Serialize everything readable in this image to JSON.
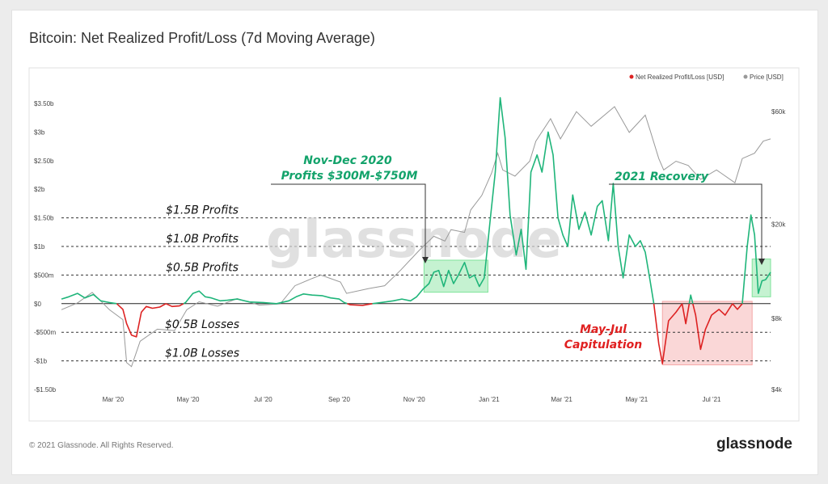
{
  "title": "Bitcoin: Net Realized Profit/Loss (7d Moving Average)",
  "footer": {
    "copyright": "© 2021 Glassnode. All Rights Reserved.",
    "brand": "glassnode"
  },
  "watermark": "glassnode",
  "colors": {
    "profit": "#1fb57a",
    "loss": "#dd2222",
    "price": "#999999",
    "profit_box": "#7fe39a",
    "loss_box": "#f5a7a7",
    "profit_text": "#13a36b",
    "loss_text": "#e02020"
  },
  "chart_data": {
    "type": "line",
    "title": "Bitcoin: Net Realized Profit/Loss (7d Moving Average)",
    "legend": [
      {
        "label": "Net Realized Profit/Loss [USD]",
        "color": "#dd2222"
      },
      {
        "label": "Price [USD]",
        "color": "#999999"
      }
    ],
    "legend_position": "top-right",
    "x_ticks": [
      {
        "label": "Mar '20",
        "date": "2020-03-01"
      },
      {
        "label": "May '20",
        "date": "2020-05-01"
      },
      {
        "label": "Jul '20",
        "date": "2020-07-01"
      },
      {
        "label": "Sep '20",
        "date": "2020-09-01"
      },
      {
        "label": "Nov '20",
        "date": "2020-11-01"
      },
      {
        "label": "Jan '21",
        "date": "2021-01-01"
      },
      {
        "label": "Mar '21",
        "date": "2021-03-01"
      },
      {
        "label": "May '21",
        "date": "2021-05-01"
      },
      {
        "label": "Jul '21",
        "date": "2021-07-01"
      }
    ],
    "x_range": [
      "2020-01-19",
      "2021-08-18"
    ],
    "y_left": {
      "label": "Net Realized Profit/Loss [USD]",
      "range": [
        -1.5,
        3.5
      ],
      "unit": "billions USD",
      "ticks": [
        {
          "v": 3.5,
          "label": "$3.50b"
        },
        {
          "v": 3,
          "label": "$3b"
        },
        {
          "v": 2.5,
          "label": "$2.50b"
        },
        {
          "v": 2,
          "label": "$2b"
        },
        {
          "v": 1.5,
          "label": "$1.50b"
        },
        {
          "v": 1,
          "label": "$1b"
        },
        {
          "v": 0.5,
          "label": "$500m"
        },
        {
          "v": 0,
          "label": "$0"
        },
        {
          "v": -0.5,
          "label": "-$500m"
        },
        {
          "v": -1,
          "label": "-$1b"
        },
        {
          "v": -1.5,
          "label": "-$1.50b"
        }
      ]
    },
    "y_right": {
      "label": "Price [USD]",
      "scale": "log",
      "range": [
        4000,
        65000
      ],
      "ticks": [
        {
          "v": 60000,
          "label": "$60k"
        },
        {
          "v": 20000,
          "label": "$20k"
        },
        {
          "v": 8000,
          "label": "$8k"
        },
        {
          "v": 4000,
          "label": "$4k"
        }
      ]
    },
    "reference_lines": [
      {
        "v": 1.5,
        "label": "$1.5B Profits"
      },
      {
        "v": 1.0,
        "label": "$1.0B Profits"
      },
      {
        "v": 0.5,
        "label": "$0.5B Profits"
      },
      {
        "v": -0.5,
        "label": "$0.5B Losses"
      },
      {
        "v": -1.0,
        "label": "$1.0B Losses"
      }
    ],
    "highlight_regions": [
      {
        "id": "nov-dec-2020",
        "x0": "2020-11-09",
        "x1": "2020-12-31",
        "y0": 0.2,
        "y1": 0.76,
        "kind": "profit"
      },
      {
        "id": "may-jul-2021",
        "x0": "2021-05-22",
        "x1": "2021-08-03",
        "y0": -1.07,
        "y1": 0.04,
        "kind": "loss"
      },
      {
        "id": "recovery-2021",
        "x0": "2021-08-03",
        "x1": "2021-08-18",
        "y0": 0.12,
        "y1": 0.78,
        "kind": "profit"
      }
    ],
    "annotations": [
      {
        "id": "nov-dec",
        "lines": [
          "Nov-Dec 2020",
          "Profits $300M-$750M"
        ],
        "kind": "profit"
      },
      {
        "id": "recovery",
        "lines": [
          "2021  Recovery"
        ],
        "kind": "profit"
      },
      {
        "id": "capitulation",
        "lines": [
          "May-Jul",
          "Capitulation"
        ],
        "kind": "loss"
      }
    ],
    "series": [
      {
        "name": "Net Realized Profit/Loss [USD]",
        "unit": "billions USD",
        "points": [
          [
            "2020-01-19",
            0.08
          ],
          [
            "2020-01-25",
            0.12
          ],
          [
            "2020-02-01",
            0.18
          ],
          [
            "2020-02-07",
            0.1
          ],
          [
            "2020-02-14",
            0.16
          ],
          [
            "2020-02-20",
            0.05
          ],
          [
            "2020-02-27",
            0.02
          ],
          [
            "2020-03-04",
            0.0
          ],
          [
            "2020-03-09",
            -0.1
          ],
          [
            "2020-03-12",
            -0.35
          ],
          [
            "2020-03-16",
            -0.55
          ],
          [
            "2020-03-20",
            -0.58
          ],
          [
            "2020-03-24",
            -0.15
          ],
          [
            "2020-03-28",
            -0.05
          ],
          [
            "2020-04-02",
            -0.08
          ],
          [
            "2020-04-08",
            -0.06
          ],
          [
            "2020-04-13",
            0.0
          ],
          [
            "2020-04-18",
            -0.05
          ],
          [
            "2020-04-24",
            -0.04
          ],
          [
            "2020-04-29",
            0.02
          ],
          [
            "2020-05-05",
            0.18
          ],
          [
            "2020-05-10",
            0.22
          ],
          [
            "2020-05-15",
            0.12
          ],
          [
            "2020-05-20",
            0.1
          ],
          [
            "2020-05-27",
            0.05
          ],
          [
            "2020-06-02",
            0.06
          ],
          [
            "2020-06-10",
            0.08
          ],
          [
            "2020-06-20",
            0.03
          ],
          [
            "2020-07-01",
            0.02
          ],
          [
            "2020-07-12",
            0.0
          ],
          [
            "2020-07-22",
            0.05
          ],
          [
            "2020-07-28",
            0.12
          ],
          [
            "2020-08-03",
            0.17
          ],
          [
            "2020-08-10",
            0.15
          ],
          [
            "2020-08-18",
            0.14
          ],
          [
            "2020-08-25",
            0.1
          ],
          [
            "2020-09-01",
            0.08
          ],
          [
            "2020-09-05",
            0.02
          ],
          [
            "2020-09-10",
            -0.02
          ],
          [
            "2020-09-20",
            -0.03
          ],
          [
            "2020-09-28",
            0.0
          ],
          [
            "2020-10-05",
            0.02
          ],
          [
            "2020-10-15",
            0.05
          ],
          [
            "2020-10-22",
            0.08
          ],
          [
            "2020-10-29",
            0.05
          ],
          [
            "2020-11-03",
            0.12
          ],
          [
            "2020-11-08",
            0.25
          ],
          [
            "2020-11-13",
            0.35
          ],
          [
            "2020-11-17",
            0.55
          ],
          [
            "2020-11-21",
            0.58
          ],
          [
            "2020-11-25",
            0.3
          ],
          [
            "2020-11-29",
            0.58
          ],
          [
            "2020-12-03",
            0.35
          ],
          [
            "2020-12-07",
            0.5
          ],
          [
            "2020-12-12",
            0.72
          ],
          [
            "2020-12-16",
            0.45
          ],
          [
            "2020-12-20",
            0.5
          ],
          [
            "2020-12-24",
            0.3
          ],
          [
            "2020-12-28",
            0.45
          ],
          [
            "2021-01-02",
            1.5
          ],
          [
            "2021-01-06",
            2.3
          ],
          [
            "2021-01-10",
            3.6
          ],
          [
            "2021-01-14",
            2.9
          ],
          [
            "2021-01-18",
            1.55
          ],
          [
            "2021-01-23",
            0.85
          ],
          [
            "2021-01-27",
            1.3
          ],
          [
            "2021-01-31",
            0.6
          ],
          [
            "2021-02-04",
            2.3
          ],
          [
            "2021-02-09",
            2.6
          ],
          [
            "2021-02-13",
            2.3
          ],
          [
            "2021-02-18",
            3.0
          ],
          [
            "2021-02-22",
            2.6
          ],
          [
            "2021-02-26",
            1.5
          ],
          [
            "2021-03-02",
            1.2
          ],
          [
            "2021-03-06",
            1.0
          ],
          [
            "2021-03-10",
            1.9
          ],
          [
            "2021-03-15",
            1.3
          ],
          [
            "2021-03-20",
            1.6
          ],
          [
            "2021-03-25",
            1.2
          ],
          [
            "2021-03-30",
            1.7
          ],
          [
            "2021-04-03",
            1.8
          ],
          [
            "2021-04-08",
            1.1
          ],
          [
            "2021-04-12",
            2.1
          ],
          [
            "2021-04-16",
            1.0
          ],
          [
            "2021-04-20",
            0.45
          ],
          [
            "2021-04-25",
            1.2
          ],
          [
            "2021-04-30",
            1.0
          ],
          [
            "2021-05-04",
            1.1
          ],
          [
            "2021-05-08",
            0.9
          ],
          [
            "2021-05-12",
            0.4
          ],
          [
            "2021-05-15",
            0.0
          ],
          [
            "2021-05-19",
            -0.7
          ],
          [
            "2021-05-22",
            -1.05
          ],
          [
            "2021-05-27",
            -0.3
          ],
          [
            "2021-06-02",
            -0.15
          ],
          [
            "2021-06-07",
            0.0
          ],
          [
            "2021-06-10",
            -0.35
          ],
          [
            "2021-06-14",
            0.15
          ],
          [
            "2021-06-18",
            -0.2
          ],
          [
            "2021-06-22",
            -0.8
          ],
          [
            "2021-06-26",
            -0.45
          ],
          [
            "2021-07-01",
            -0.2
          ],
          [
            "2021-07-07",
            -0.1
          ],
          [
            "2021-07-12",
            -0.2
          ],
          [
            "2021-07-18",
            0.0
          ],
          [
            "2021-07-22",
            -0.1
          ],
          [
            "2021-07-26",
            0.0
          ],
          [
            "2021-07-30",
            1.0
          ],
          [
            "2021-08-02",
            1.55
          ],
          [
            "2021-08-05",
            1.2
          ],
          [
            "2021-08-08",
            0.18
          ],
          [
            "2021-08-11",
            0.4
          ],
          [
            "2021-08-14",
            0.42
          ],
          [
            "2021-08-18",
            0.55
          ]
        ]
      },
      {
        "name": "Price [USD]",
        "unit": "USD",
        "points": [
          [
            "2020-01-19",
            8700
          ],
          [
            "2020-02-01",
            9300
          ],
          [
            "2020-02-13",
            10300
          ],
          [
            "2020-02-27",
            8700
          ],
          [
            "2020-03-09",
            7900
          ],
          [
            "2020-03-12",
            5200
          ],
          [
            "2020-03-16",
            5000
          ],
          [
            "2020-03-23",
            6400
          ],
          [
            "2020-04-06",
            7200
          ],
          [
            "2020-04-20",
            7100
          ],
          [
            "2020-04-30",
            8700
          ],
          [
            "2020-05-10",
            9400
          ],
          [
            "2020-05-25",
            9000
          ],
          [
            "2020-06-10",
            9700
          ],
          [
            "2020-06-28",
            9100
          ],
          [
            "2020-07-15",
            9200
          ],
          [
            "2020-07-27",
            11000
          ],
          [
            "2020-08-10",
            11800
          ],
          [
            "2020-08-17",
            12200
          ],
          [
            "2020-09-02",
            11400
          ],
          [
            "2020-09-07",
            10200
          ],
          [
            "2020-09-25",
            10700
          ],
          [
            "2020-10-08",
            11000
          ],
          [
            "2020-10-21",
            12800
          ],
          [
            "2020-11-05",
            15500
          ],
          [
            "2020-11-17",
            17800
          ],
          [
            "2020-11-26",
            17000
          ],
          [
            "2020-12-01",
            19000
          ],
          [
            "2020-12-12",
            18500
          ],
          [
            "2020-12-17",
            23000
          ],
          [
            "2020-12-26",
            26500
          ],
          [
            "2021-01-03",
            33000
          ],
          [
            "2021-01-08",
            40000
          ],
          [
            "2021-01-12",
            34000
          ],
          [
            "2021-01-22",
            32000
          ],
          [
            "2021-02-03",
            37000
          ],
          [
            "2021-02-08",
            45000
          ],
          [
            "2021-02-20",
            56000
          ],
          [
            "2021-02-28",
            46000
          ],
          [
            "2021-03-13",
            60000
          ],
          [
            "2021-03-25",
            52000
          ],
          [
            "2021-04-13",
            63000
          ],
          [
            "2021-04-25",
            49000
          ],
          [
            "2021-05-08",
            58000
          ],
          [
            "2021-05-12",
            50000
          ],
          [
            "2021-05-19",
            38000
          ],
          [
            "2021-05-23",
            34000
          ],
          [
            "2021-06-02",
            37000
          ],
          [
            "2021-06-12",
            35500
          ],
          [
            "2021-06-22",
            31000
          ],
          [
            "2021-07-05",
            34000
          ],
          [
            "2021-07-20",
            30000
          ],
          [
            "2021-07-26",
            38000
          ],
          [
            "2021-08-05",
            40000
          ],
          [
            "2021-08-12",
            45000
          ],
          [
            "2021-08-18",
            46000
          ]
        ]
      }
    ]
  }
}
